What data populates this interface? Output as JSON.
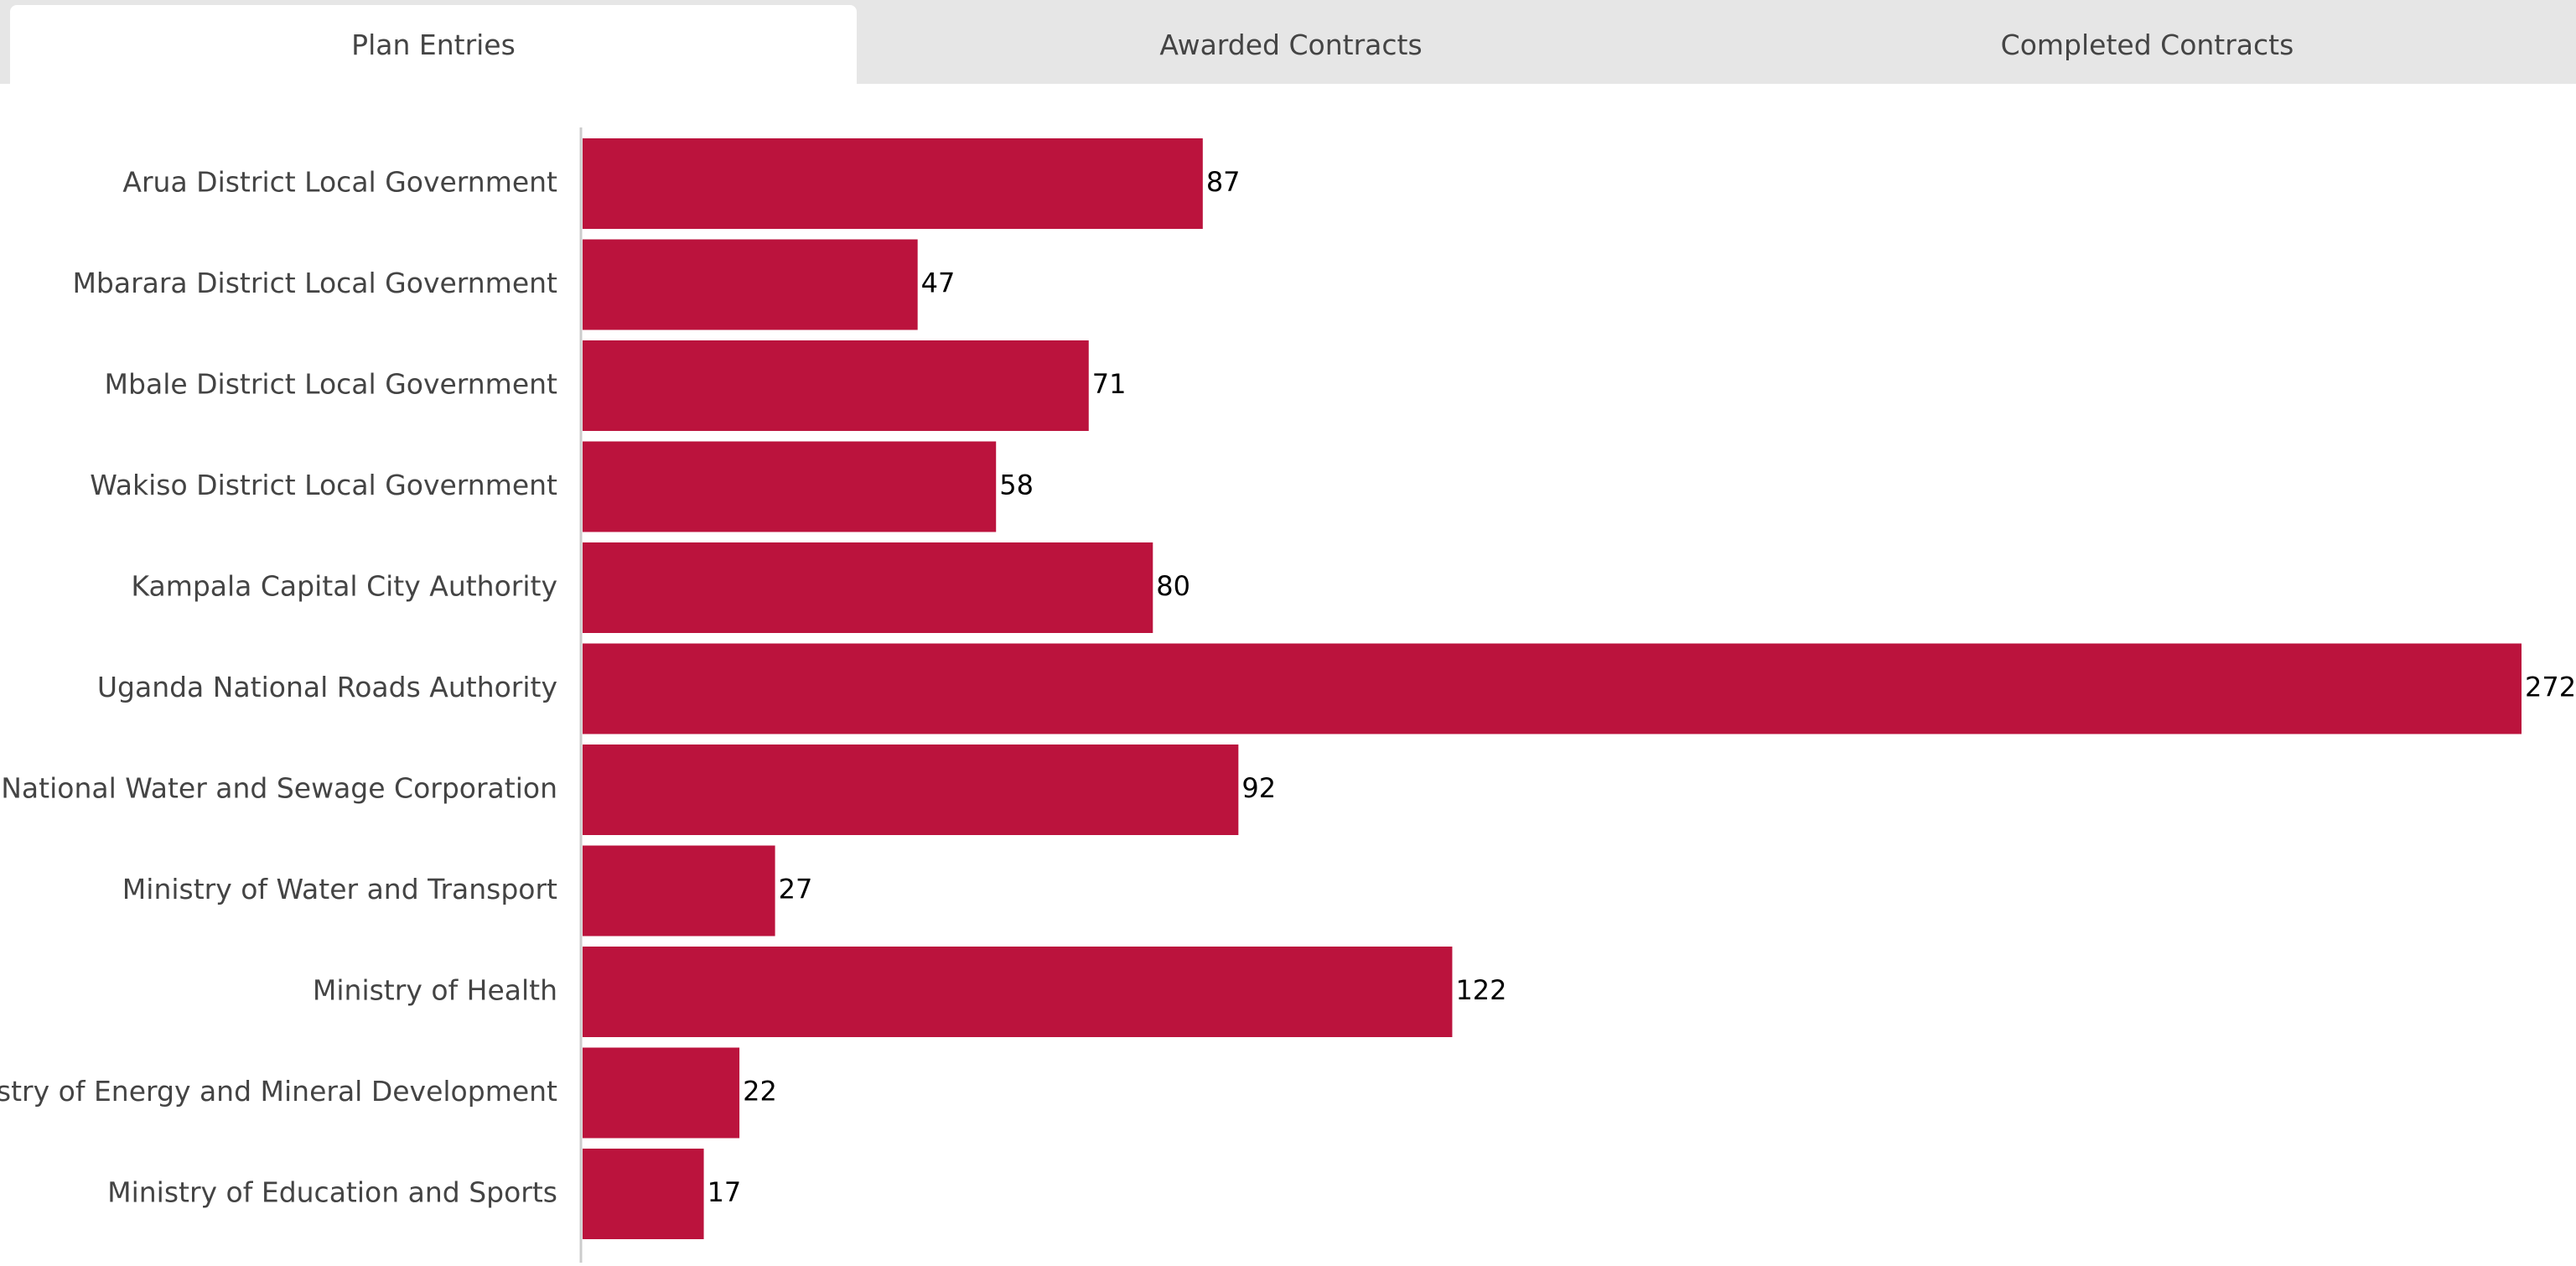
{
  "tabs": [
    {
      "label": "Plan Entries",
      "active": true
    },
    {
      "label": "Awarded Contracts",
      "active": false
    },
    {
      "label": "Completed Contracts",
      "active": false
    }
  ],
  "colors": {
    "bar": "#bb133d",
    "axis": "#cccccc"
  },
  "chart_data": {
    "type": "bar",
    "orientation": "horizontal",
    "categories": [
      "Arua District Local Government",
      "Mbarara District Local Government",
      "Mbale District Local Government",
      "Wakiso District Local Government",
      "Kampala Capital City Authority",
      "Uganda National Roads Authority",
      "National Water and Sewage Corporation",
      "Ministry of Water and Transport",
      "Ministry of Health",
      "Ministry of Energy and Mineral Development",
      "Ministry of Education and Sports"
    ],
    "values": [
      87,
      47,
      71,
      58,
      80,
      272,
      92,
      27,
      122,
      22,
      17
    ],
    "xlim": [
      0,
      272
    ],
    "grid": false,
    "data_labels": true
  }
}
